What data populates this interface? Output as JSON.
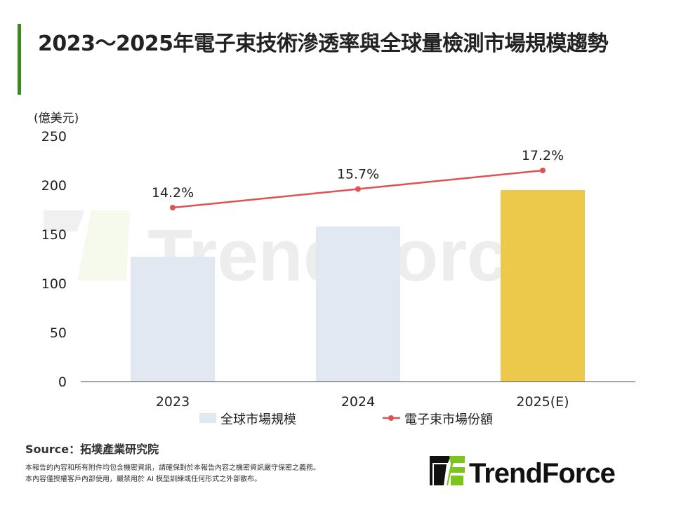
{
  "title": "2023～2025年電子束技術滲透率與全球量檢測市場規模趨勢",
  "source": "Source：拓墣產業研究院",
  "disclaimer": [
    "本報告的內容和所有附件均包含機密資訊，請確保對於本報告內容之機密資訊嚴守保密之義務。",
    "本內容僅授權客戶內部使用，嚴禁用於 AI 模型訓練或任何形式之外部散布。"
  ],
  "logo_text": "TrendForce",
  "watermark": "TrendForce",
  "chart_data": {
    "type": "bar+line",
    "categories": [
      "2023",
      "2024",
      "2025(E)"
    ],
    "ylabel": "(億美元)",
    "ylim": [
      0,
      250
    ],
    "yticks": [
      0,
      50,
      100,
      150,
      200,
      250
    ],
    "grid": false,
    "legend_placement": "bottom",
    "series": [
      {
        "name": "全球市場規模",
        "type": "bar",
        "values": [
          127,
          158,
          195
        ],
        "colors": [
          "#e1e8f1",
          "#e1e8f1",
          "#ecc94b"
        ]
      },
      {
        "name": "電子束市場份額",
        "type": "line",
        "values": [
          14.2,
          15.7,
          17.2
        ],
        "labels": [
          "14.2%",
          "15.7%",
          "17.2%"
        ],
        "color": "#e05252"
      }
    ]
  }
}
